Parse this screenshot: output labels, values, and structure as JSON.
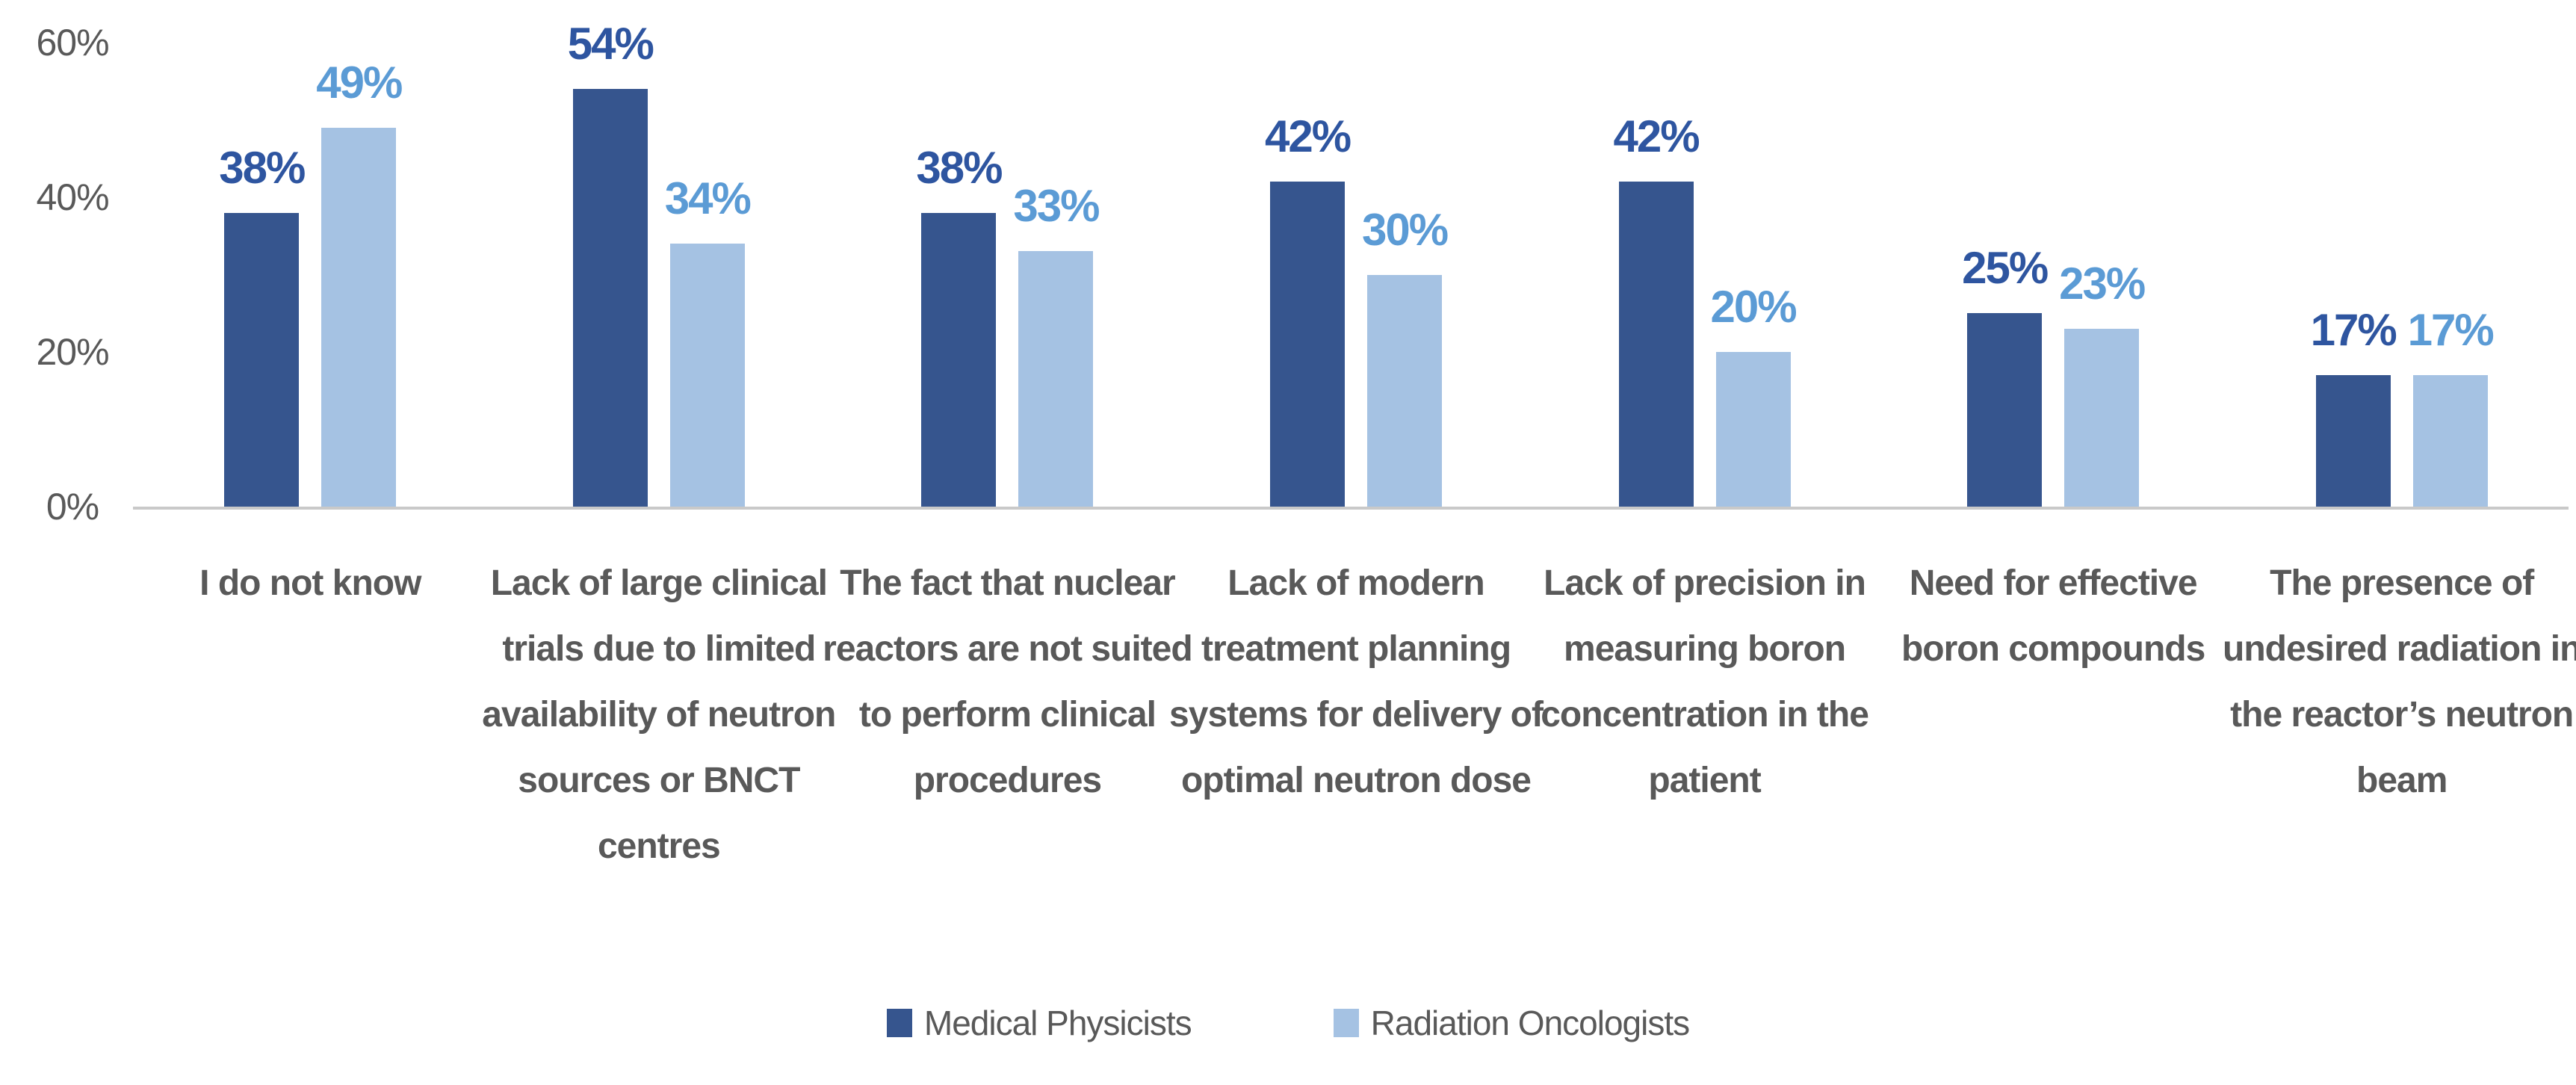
{
  "chart_data": {
    "type": "bar",
    "title": "",
    "xlabel": "",
    "ylabel": "",
    "categories": [
      "I do not know",
      "Lack of large clinical trials due to limited availability of neutron sources or BNCT centres",
      "The fact that nuclear reactors are not suited to perform clinical procedures",
      "Lack of modern treatment planning systems for delivery of optimal neutron dose",
      "Lack of precision in measuring boron concentration in the patient",
      "Need for effective boron compounds",
      "The presence of undesired radiation in the reactor’s neutron beam"
    ],
    "series": [
      {
        "name": "Medical Physicists",
        "color": "#36558E",
        "label_color": "#2E55A0",
        "values": [
          38,
          54,
          38,
          42,
          42,
          25,
          17
        ],
        "value_labels": [
          "38%",
          "54%",
          "38%",
          "42%",
          "42%",
          "25%",
          "17%"
        ]
      },
      {
        "name": "Radiation Oncologists",
        "color": "#A5C2E3",
        "label_color": "#5B9BD5",
        "values": [
          49,
          34,
          33,
          30,
          20,
          23,
          17
        ],
        "value_labels": [
          "49%",
          "34%",
          "33%",
          "30%",
          "20%",
          "23%",
          "17%"
        ]
      }
    ],
    "value_suffix": "%",
    "y_axis": {
      "tick_labels": [
        "60%",
        "40%",
        "20%",
        "0%"
      ],
      "tick_values": [
        60,
        40,
        20,
        0
      ],
      "min": 0,
      "max": 60,
      "grid": false
    },
    "legend": {
      "position": "bottom",
      "entries": [
        "Medical Physicists",
        "Radiation Oncologists"
      ]
    },
    "colors": {
      "axis_text": "#595959",
      "category_text": "#595959",
      "baseline": "#C9C9C9",
      "background": "#FFFFFF"
    }
  }
}
